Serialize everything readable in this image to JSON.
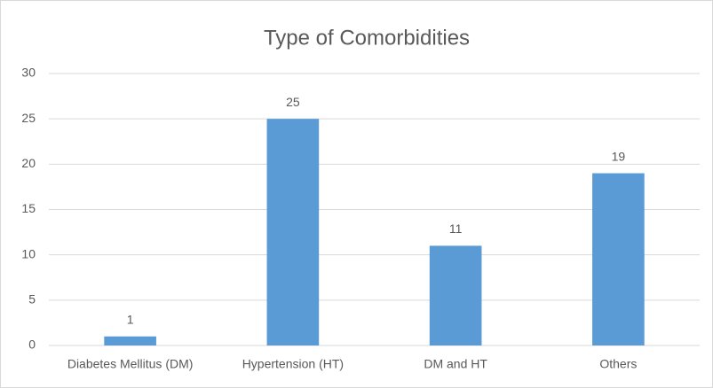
{
  "chart_data": {
    "type": "bar",
    "title": "Type of Comorbidities",
    "categories": [
      "Diabetes Mellitus (DM)",
      "Hypertension (HT)",
      "DM and HT",
      "Others"
    ],
    "values": [
      1,
      25,
      11,
      19
    ],
    "color": "#5b9bd5",
    "ylim": [
      0,
      30
    ],
    "yticks": [
      0,
      5,
      10,
      15,
      20,
      25,
      30
    ],
    "grid": true,
    "data_labels": true
  }
}
